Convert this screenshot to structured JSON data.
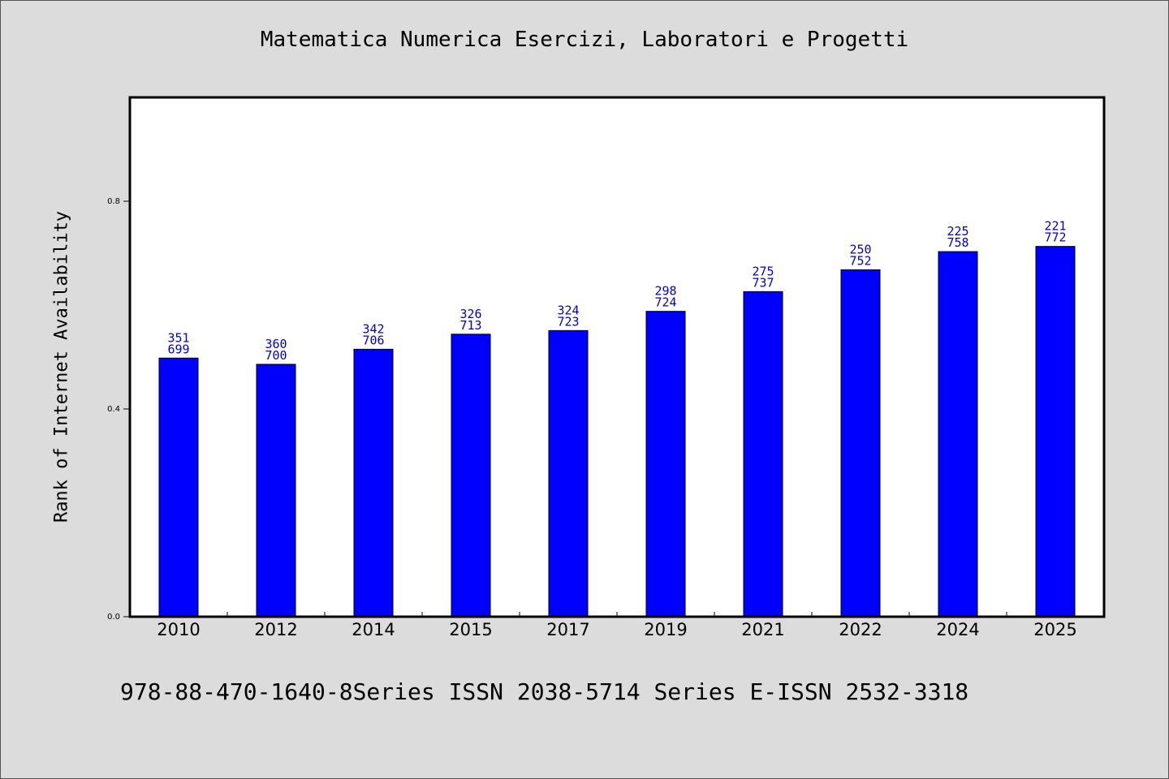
{
  "title": "Matematica Numerica Esercizi, Laboratori e Progetti",
  "footer": "978-88-470-1640-8Series ISSN 2038-5714 Series E-ISSN 2532-3318",
  "chart_data": {
    "type": "bar",
    "title": "Matematica Numerica Esercizi, Laboratori e Progetti",
    "xlabel": "",
    "ylabel": "Rank of Internet Availability",
    "ylim": [
      0,
      1.0
    ],
    "yticks": [
      "0.0",
      "0.4",
      "0.8"
    ],
    "categories": [
      "2010",
      "2012",
      "2014",
      "2015",
      "2017",
      "2019",
      "2021",
      "2022",
      "2024",
      "2025"
    ],
    "values": [
      0.498,
      0.486,
      0.515,
      0.544,
      0.551,
      0.588,
      0.626,
      0.668,
      0.703,
      0.713
    ],
    "data_labels": [
      [
        "351",
        "699"
      ],
      [
        "360",
        "700"
      ],
      [
        "342",
        "706"
      ],
      [
        "326",
        "713"
      ],
      [
        "324",
        "723"
      ],
      [
        "298",
        "724"
      ],
      [
        "275",
        "737"
      ],
      [
        "250",
        "752"
      ],
      [
        "225",
        "758"
      ],
      [
        "221",
        "772"
      ]
    ],
    "bar_color": "#0000ff",
    "label_color": "#0000cc",
    "grid": false,
    "legend": "none"
  }
}
